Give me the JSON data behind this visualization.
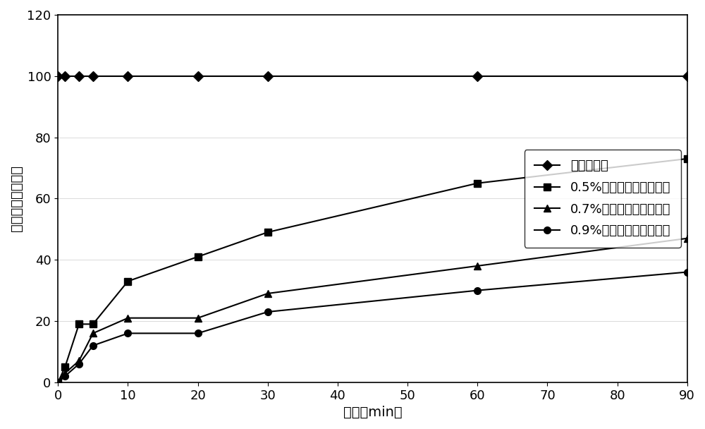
{
  "title": "",
  "xlabel": "时间（min）",
  "ylabel": "沉降百分比（％）",
  "xlim": [
    0,
    90
  ],
  "ylim": [
    0,
    120
  ],
  "xticks": [
    0,
    10,
    20,
    30,
    40,
    50,
    60,
    70,
    80,
    90
  ],
  "yticks": [
    0,
    20,
    40,
    60,
    80,
    100,
    120
  ],
  "series": [
    {
      "label": "清水压裂液",
      "x": [
        0,
        1,
        3,
        5,
        10,
        20,
        30,
        60,
        90
      ],
      "y": [
        100,
        100,
        100,
        100,
        100,
        100,
        100,
        100,
        100
      ],
      "marker": "D",
      "color": "#000000",
      "linewidth": 1.5,
      "markersize": 7
    },
    {
      "label": "0.5%纤维复合清水压裂液",
      "x": [
        0,
        1,
        3,
        5,
        10,
        20,
        30,
        60,
        90
      ],
      "y": [
        0,
        5,
        19,
        19,
        33,
        41,
        49,
        65,
        73
      ],
      "marker": "s",
      "color": "#000000",
      "linewidth": 1.5,
      "markersize": 7
    },
    {
      "label": "0.7%纤维复合清水压裂液",
      "x": [
        0,
        1,
        3,
        5,
        10,
        20,
        30,
        60,
        90
      ],
      "y": [
        0,
        3,
        7,
        16,
        21,
        21,
        29,
        38,
        47
      ],
      "marker": "^",
      "color": "#000000",
      "linewidth": 1.5,
      "markersize": 7
    },
    {
      "label": "0.9%纤维复合清水压裂液",
      "x": [
        0,
        1,
        3,
        5,
        10,
        20,
        30,
        60,
        90
      ],
      "y": [
        0,
        2,
        6,
        12,
        16,
        16,
        23,
        30,
        36
      ],
      "marker": "o",
      "color": "#000000",
      "linewidth": 1.5,
      "markersize": 7
    }
  ],
  "legend_loc": "center right",
  "background_color": "#ffffff",
  "font_size": 13,
  "label_font_size": 14,
  "tick_font_size": 13
}
